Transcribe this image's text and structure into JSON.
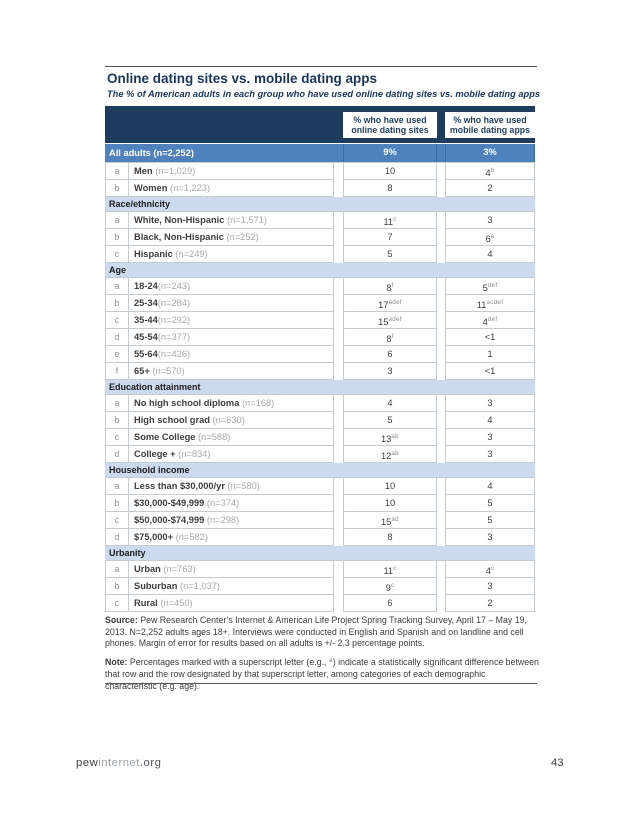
{
  "colors": {
    "header_navy": "#1e3c5e",
    "highlight_blue": "#4f81bd",
    "section_light_blue": "#cbdaee",
    "title_navy": "#17365d"
  },
  "page": {
    "title": "Online dating sites vs. mobile dating apps",
    "subtitle": "The % of American adults in each group who have used online dating sites vs. mobile dating apps",
    "page_number": "43",
    "site_parts": [
      "pew",
      "internet",
      ".org"
    ]
  },
  "table": {
    "col_headers": [
      "% who have used online dating sites",
      "% who have used mobile dating apps"
    ],
    "all_adults": {
      "label": "All adults (n=2,252)",
      "online": "9%",
      "mobile": "3%"
    },
    "sections": [
      {
        "header": "",
        "rows": [
          {
            "letter": "a",
            "name": "Men",
            "n": " (n=1,029)",
            "online": {
              "v": "10",
              "s": ""
            },
            "mobile": {
              "v": "4",
              "s": "b"
            }
          },
          {
            "letter": "b",
            "name": "Women",
            "n": " (n=1,223)",
            "online": {
              "v": "8",
              "s": ""
            },
            "mobile": {
              "v": "2",
              "s": ""
            }
          }
        ]
      },
      {
        "header": "Race/ethnicity",
        "rows": [
          {
            "letter": "a",
            "name": "White, Non-Hispanic",
            "n": " (n=1,571)",
            "online": {
              "v": "11",
              "s": "c"
            },
            "mobile": {
              "v": "3",
              "s": ""
            }
          },
          {
            "letter": "b",
            "name": "Black, Non-Hispanic",
            "n": " (n=252)",
            "online": {
              "v": "7",
              "s": ""
            },
            "mobile": {
              "v": "6",
              "s": "a"
            }
          },
          {
            "letter": "c",
            "name": "Hispanic",
            "n": " (n=249)",
            "online": {
              "v": "5",
              "s": ""
            },
            "mobile": {
              "v": "4",
              "s": ""
            }
          }
        ]
      },
      {
        "header": "Age",
        "rows": [
          {
            "letter": "a",
            "name": "18-24",
            "n": "(n=243)",
            "online": {
              "v": "8",
              "s": "f"
            },
            "mobile": {
              "v": "5",
              "s": "def"
            }
          },
          {
            "letter": "b",
            "name": "25-34",
            "n": "(n=284)",
            "online": {
              "v": "17",
              "s": "adef"
            },
            "mobile": {
              "v": "11",
              "s": "acdef"
            }
          },
          {
            "letter": "c",
            "name": "35-44",
            "n": "(n=292)",
            "online": {
              "v": "15",
              "s": "adef"
            },
            "mobile": {
              "v": "4",
              "s": "def"
            }
          },
          {
            "letter": "d",
            "name": "45-54",
            "n": "(n=377)",
            "online": {
              "v": "8",
              "s": "f"
            },
            "mobile": {
              "v": "<1",
              "s": ""
            }
          },
          {
            "letter": "e",
            "name": "55-64",
            "n": "(n=426)",
            "online": {
              "v": "6",
              "s": ""
            },
            "mobile": {
              "v": "1",
              "s": ""
            }
          },
          {
            "letter": "f",
            "name": "65+",
            "n": " (n=570)",
            "online": {
              "v": "3",
              "s": ""
            },
            "mobile": {
              "v": "<1",
              "s": ""
            }
          }
        ]
      },
      {
        "header": "Education attainment",
        "rows": [
          {
            "letter": "a",
            "name": "No high school diploma",
            "n": " (n=168)",
            "online": {
              "v": "4",
              "s": ""
            },
            "mobile": {
              "v": "3",
              "s": ""
            }
          },
          {
            "letter": "b",
            "name": "High school grad",
            "n": " (n=630)",
            "online": {
              "v": "5",
              "s": ""
            },
            "mobile": {
              "v": "4",
              "s": ""
            }
          },
          {
            "letter": "c",
            "name": "Some College",
            "n": " (n=588)",
            "online": {
              "v": "13",
              "s": "ab"
            },
            "mobile": {
              "v": "3",
              "s": ""
            }
          },
          {
            "letter": "d",
            "name": "College +",
            "n": " (n=834)",
            "online": {
              "v": "12",
              "s": "ab"
            },
            "mobile": {
              "v": "3",
              "s": ""
            }
          }
        ]
      },
      {
        "header": "Household income",
        "rows": [
          {
            "letter": "a",
            "name": "Less than $30,000/yr",
            "n": " (n=580)",
            "online": {
              "v": "10",
              "s": ""
            },
            "mobile": {
              "v": "4",
              "s": ""
            }
          },
          {
            "letter": "b",
            "name": "$30,000-$49,999",
            "n": " (n=374)",
            "online": {
              "v": "10",
              "s": ""
            },
            "mobile": {
              "v": "5",
              "s": ""
            }
          },
          {
            "letter": "c",
            "name": "$50,000-$74,999",
            "n": " (n=298)",
            "online": {
              "v": "15",
              "s": "ad"
            },
            "mobile": {
              "v": "5",
              "s": ""
            }
          },
          {
            "letter": "d",
            "name": "$75,000+",
            "n": " (n=582)",
            "online": {
              "v": "8",
              "s": ""
            },
            "mobile": {
              "v": "3",
              "s": ""
            }
          }
        ]
      },
      {
        "header": "Urbanity",
        "rows": [
          {
            "letter": "a",
            "name": "Urban",
            "n": " (n=763)",
            "online": {
              "v": "11",
              "s": "c"
            },
            "mobile": {
              "v": "4",
              "s": "c"
            }
          },
          {
            "letter": "b",
            "name": "Suburban",
            "n": " (n=1,037)",
            "online": {
              "v": "9",
              "s": "c"
            },
            "mobile": {
              "v": "3",
              "s": ""
            }
          },
          {
            "letter": "c",
            "name": "Rural",
            "n": " (n=450)",
            "online": {
              "v": "6",
              "s": ""
            },
            "mobile": {
              "v": "2",
              "s": ""
            }
          }
        ]
      }
    ]
  },
  "notes": {
    "source_label": "Source:",
    "source_text": " Pew Research Center’s Internet & American Life Project Spring Tracking Survey, April 17 – May 19, 2013. N=2,252 adults ages 18+. Interviews were conducted in English and Spanish and on landline and cell phones.  Margin of error for results based on all adults is +/- 2.3 percentage points.",
    "note_label": "Note:",
    "note_parts": [
      " Percentages marked with a superscript letter (e.g., ",
      "a",
      ") indicate a statistically significant difference between that row and the row designated by that superscript letter, among categories of each demographic characteristic (e.g. age)."
    ]
  }
}
